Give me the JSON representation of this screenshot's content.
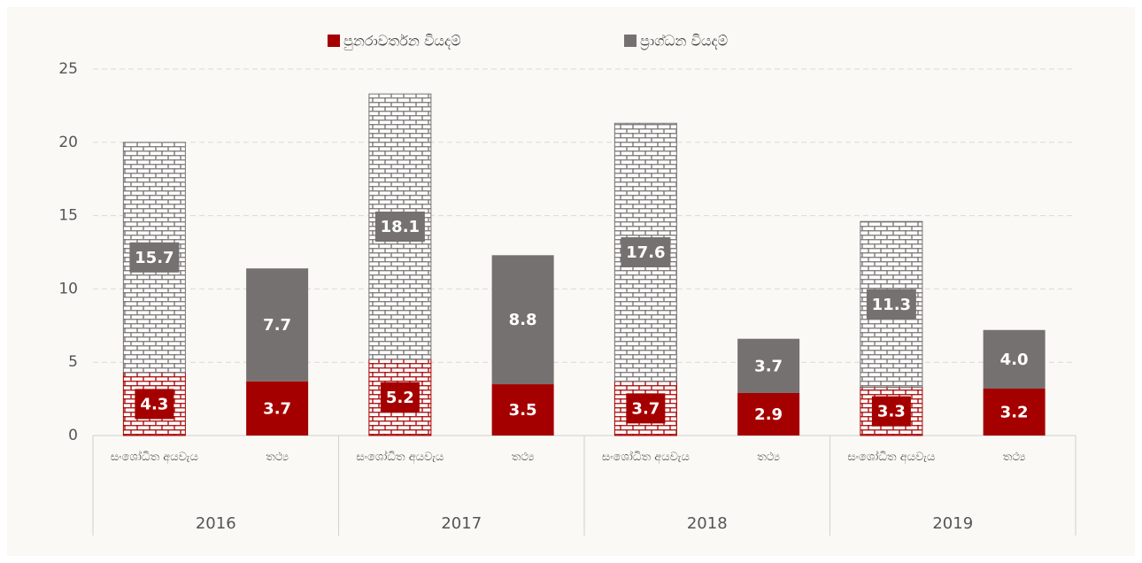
{
  "chart_data": {
    "type": "bar",
    "stacked": true,
    "categories": [
      "සංශෝධිත අයවැය",
      "තථ්‍ය",
      "සංශෝධිත අයවැය",
      "තථ්‍ය",
      "සංශෝධිත අයවැය",
      "තථ්‍ය",
      "සංශෝධිත අයවැය",
      "තථ්‍ය"
    ],
    "groups": [
      "2016",
      "2017",
      "2018",
      "2019"
    ],
    "patterned": [
      true,
      false,
      true,
      false,
      true,
      false,
      true,
      false
    ],
    "series": [
      {
        "name": "පුනරාවර්තන වියදම්",
        "color": "#a50000",
        "values": [
          4.3,
          3.7,
          5.2,
          3.5,
          3.7,
          2.9,
          3.3,
          3.2
        ],
        "value_labels": [
          "4.3",
          "3.7",
          "5.2",
          "3.5",
          "3.7",
          "2.9",
          "3.3",
          "3.2"
        ]
      },
      {
        "name": "ප්‍රාග්ධන වියදම්",
        "color": "#767171",
        "values": [
          15.7,
          7.7,
          18.1,
          8.8,
          17.6,
          3.7,
          11.3,
          4.0
        ],
        "value_labels": [
          "15.7",
          "7.7",
          "18.1",
          "8.8",
          "17.6",
          "3.7",
          "11.3",
          "4.0"
        ]
      }
    ],
    "ylim": [
      0,
      25
    ],
    "yticks": [
      0,
      5,
      10,
      15,
      20,
      25
    ],
    "grid": true,
    "legend": "top"
  }
}
